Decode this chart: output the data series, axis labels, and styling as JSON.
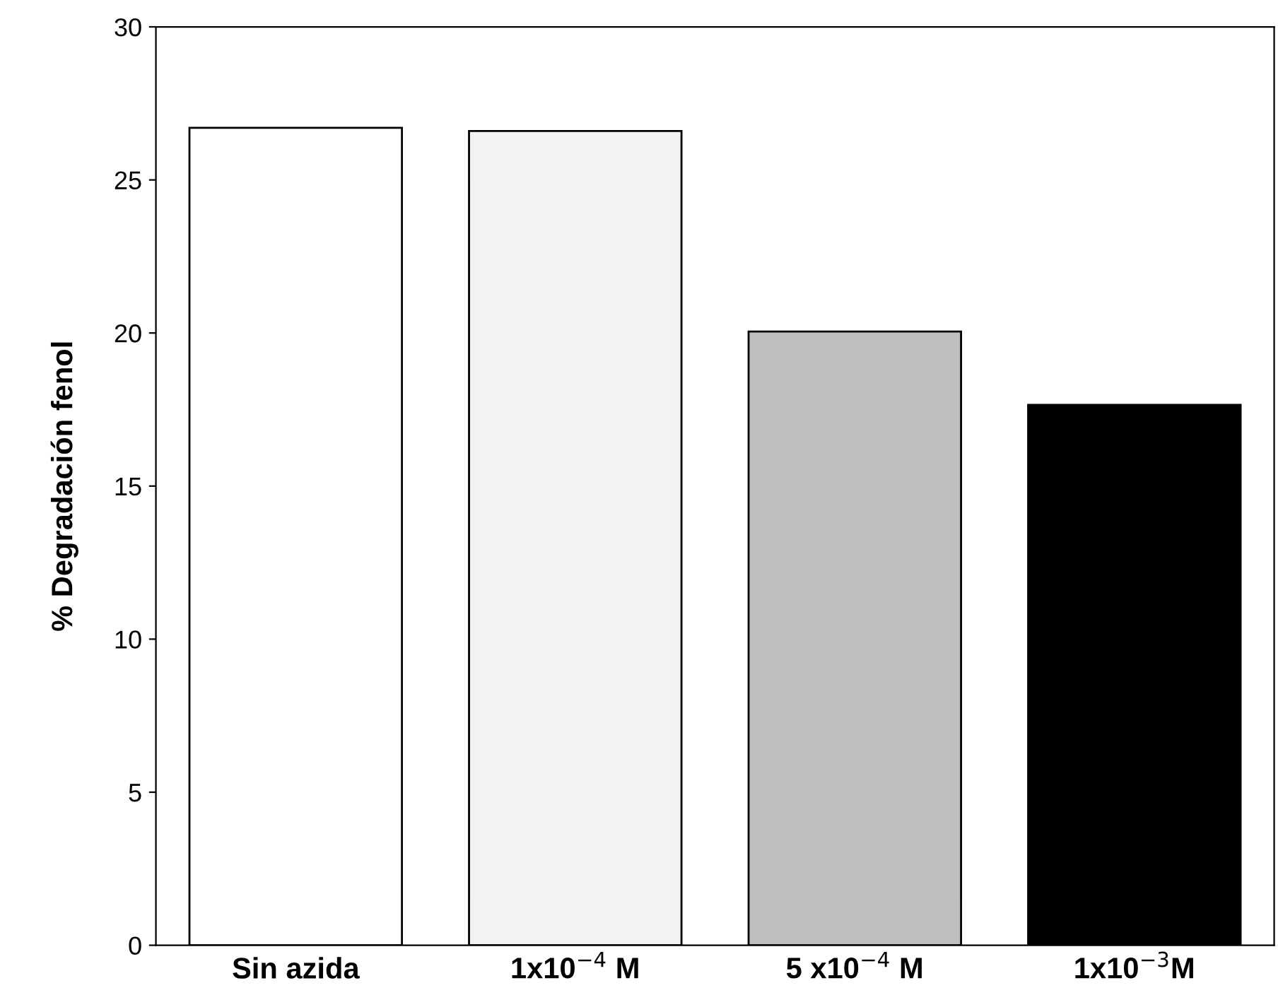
{
  "chart_data": {
    "type": "bar",
    "ylabel": "% Degradación fenol",
    "categories": [
      "Sin azida",
      "1x10$^{−4}$ M",
      "5 x10$^{−4}$ M",
      "1x10$^{−3}$M"
    ],
    "values": [
      26.7,
      26.6,
      20.05,
      17.65
    ],
    "colors": [
      "#ffffff",
      "#f2f2f2",
      "#bfbfbf",
      "#000000"
    ],
    "ylim": [
      0,
      30
    ],
    "yticks": [
      0,
      5,
      10,
      15,
      20,
      25,
      30
    ],
    "grid": false
  }
}
